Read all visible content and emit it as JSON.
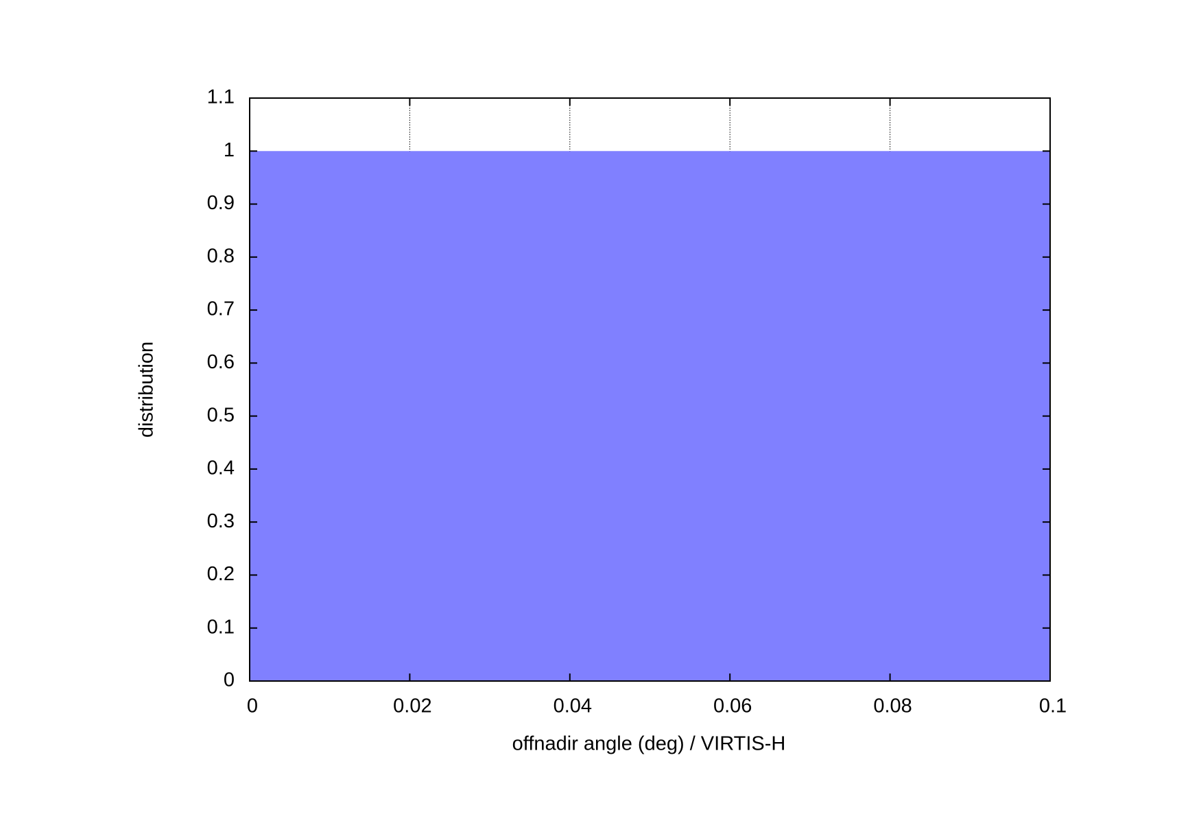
{
  "chart_data": {
    "type": "histogram",
    "xlabel": "offnadir angle (deg) / VIRTIS-H",
    "ylabel": "distribution",
    "bins": [
      0,
      0.1
    ],
    "values": [
      1
    ],
    "color": "#8080ff",
    "xlim": [
      0,
      0.1
    ],
    "xticks": [
      0,
      0.02,
      0.04,
      0.06,
      0.08,
      0.1
    ],
    "ylim": [
      0,
      1.1
    ],
    "yticks": [
      0,
      0.1,
      0.2,
      0.3,
      0.4,
      0.5,
      0.6,
      0.7,
      0.8,
      0.9,
      1,
      1.1
    ],
    "grid": "x"
  }
}
